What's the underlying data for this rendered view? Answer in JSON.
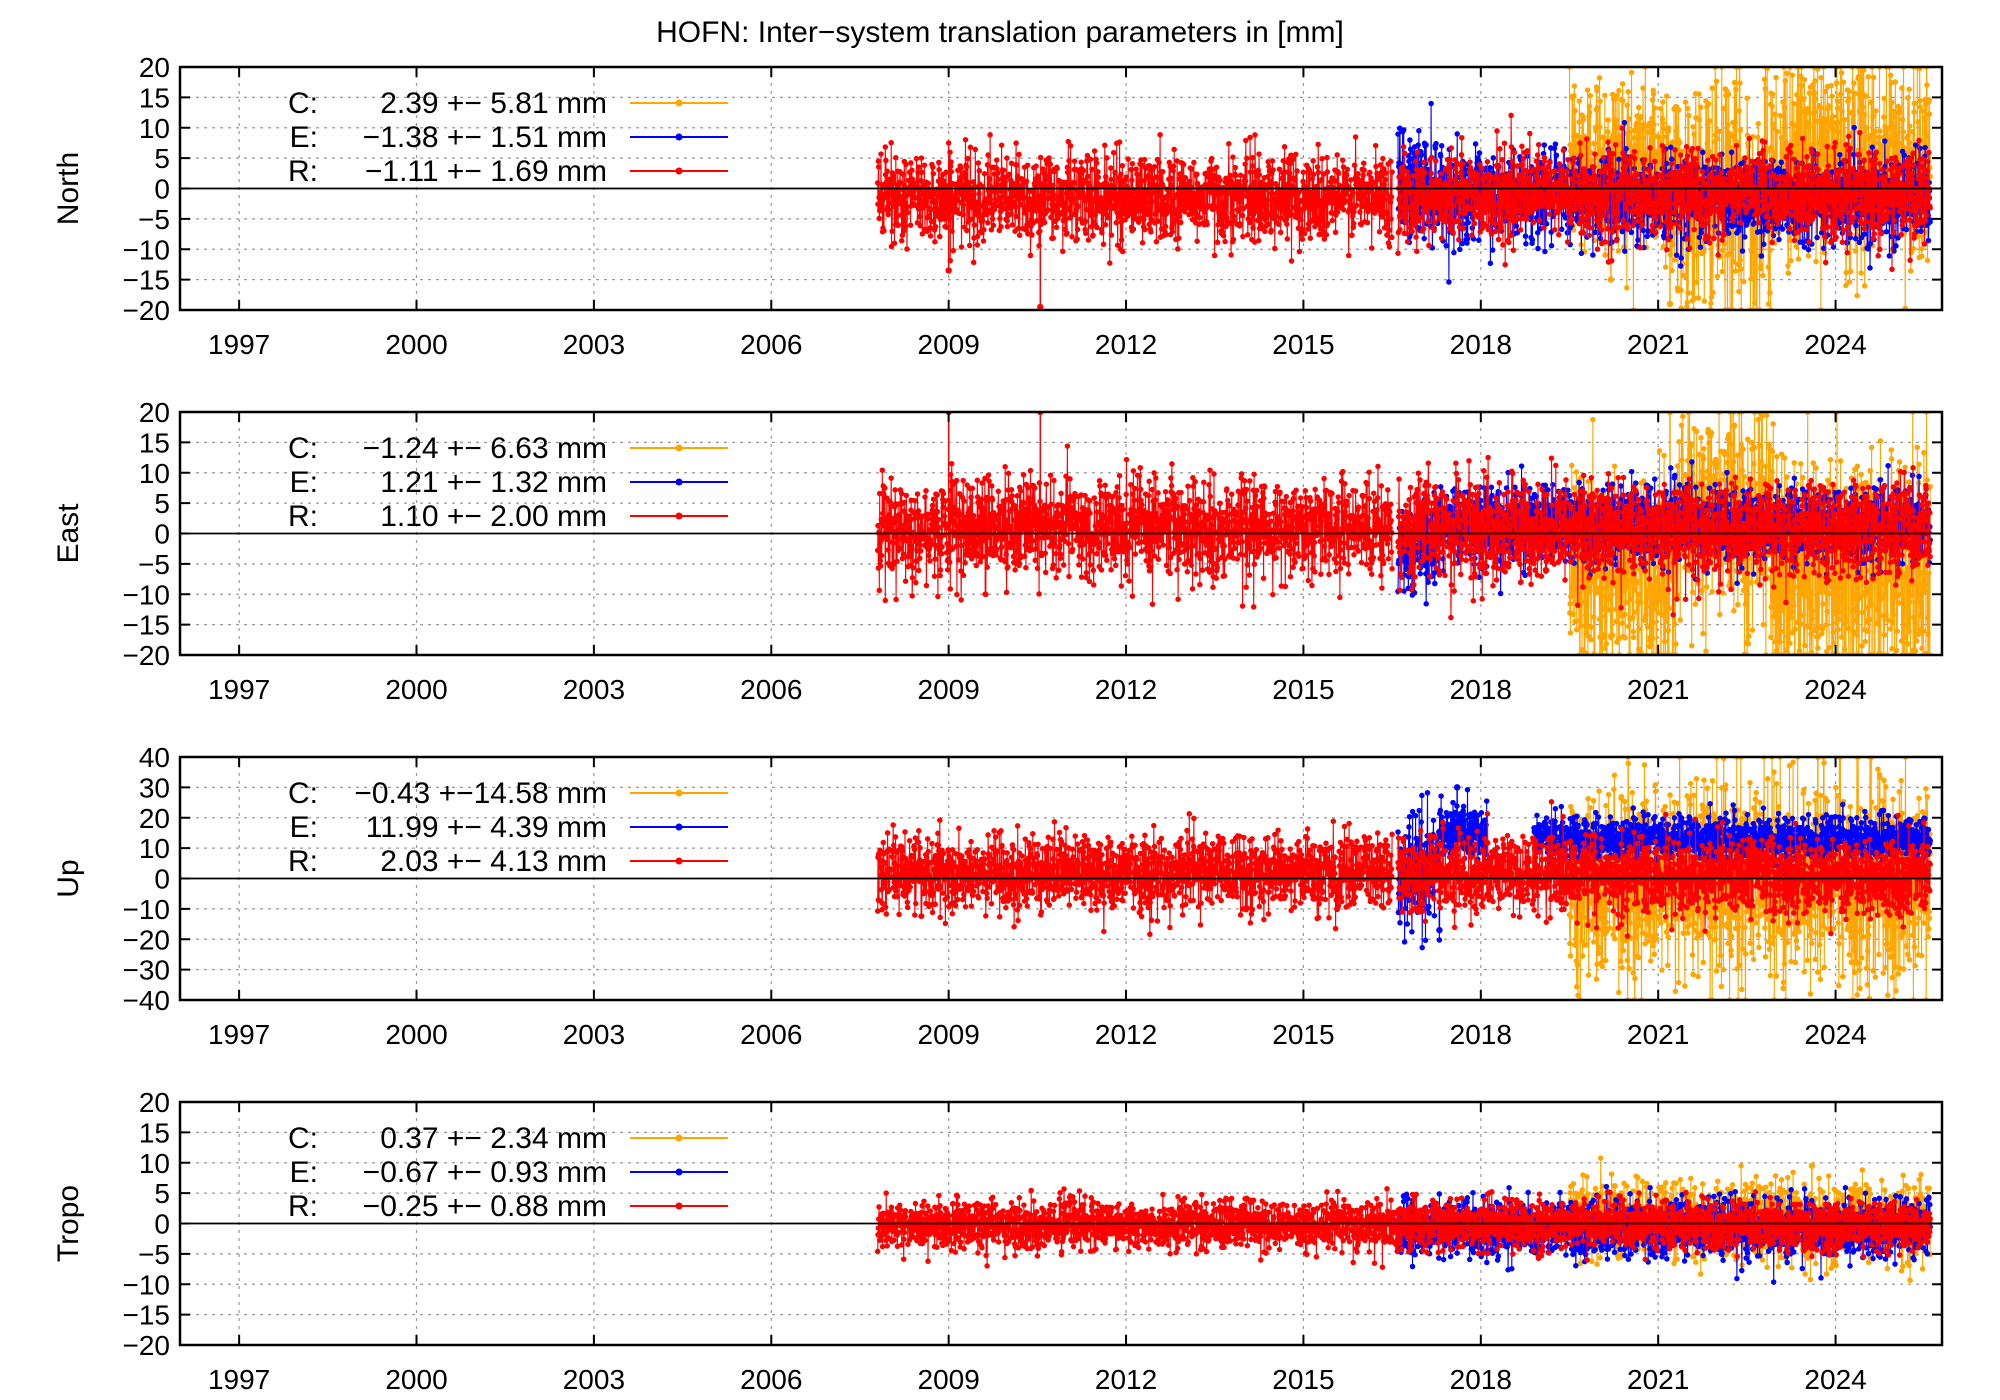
{
  "colors": {
    "C": "#ffa500",
    "E": "#0000ff",
    "R": "#ff0000"
  },
  "chart_data": {
    "type": "line",
    "title": "HOFN: Inter−system translation parameters in [mm]",
    "xlim": [
      1996.0,
      2025.8
    ],
    "xticks": [
      1997,
      2000,
      2003,
      2006,
      2009,
      2012,
      2015,
      2018,
      2021,
      2024
    ],
    "grid": true,
    "legend_position": "top-left",
    "marker": "dot-with-line",
    "panels": [
      {
        "ylabel": "North",
        "ylim": [
          -20,
          20
        ],
        "yticks": [
          20,
          15,
          10,
          5,
          0,
          -5,
          -10,
          -15,
          -20
        ],
        "series": [
          {
            "name": "C",
            "label": "C:",
            "value_text": "2.39 +− 5.81 mm",
            "mean": 2.39,
            "std": 5.81,
            "segments": [
              [
                2019.5,
                2021.2,
                4.5,
                9
              ],
              [
                2021.2,
                2022.9,
                -2,
                12
              ],
              [
                2022.9,
                2025.6,
                5,
                10
              ]
            ]
          },
          {
            "name": "E",
            "label": "E:",
            "value_text": "−1.38 +− 1.51 mm",
            "mean": -1.38,
            "std": 1.51,
            "segments": [
              [
                2016.6,
                2017.4,
                0.5,
                5
              ],
              [
                2017.4,
                2025.6,
                -1.5,
                4
              ]
            ]
          },
          {
            "name": "R",
            "label": "R:",
            "value_text": "−1.11 +− 1.69 mm",
            "mean": -1.11,
            "std": 1.69,
            "segments": [
              [
                2007.8,
                2016.5,
                -1.5,
                4
              ],
              [
                2016.6,
                2025.6,
                -1,
                4
              ]
            ]
          }
        ],
        "outliers": [
          {
            "series": "R",
            "x": 2009.0,
            "y": -13.5
          },
          {
            "series": "R",
            "x": 2010.55,
            "y": -19.5
          },
          {
            "series": "C",
            "x": 2021.2,
            "y": -19
          },
          {
            "series": "C",
            "x": 2020.2,
            "y": -15
          }
        ]
      },
      {
        "ylabel": "East",
        "ylim": [
          -20,
          20
        ],
        "yticks": [
          20,
          15,
          10,
          5,
          0,
          -5,
          -10,
          -15,
          -20
        ],
        "series": [
          {
            "name": "C",
            "label": "C:",
            "value_text": "−1.24 +− 6.63 mm",
            "mean": -1.24,
            "std": 6.63,
            "segments": [
              [
                2019.5,
                2021.3,
                -8,
                10
              ],
              [
                2021.3,
                2022.9,
                4,
                10
              ],
              [
                2022.9,
                2025.6,
                -7,
                12
              ]
            ]
          },
          {
            "name": "E",
            "label": "E:",
            "value_text": "1.21 +− 1.32 mm",
            "mean": 1.21,
            "std": 1.32,
            "segments": [
              [
                2016.6,
                2017.3,
                -2,
                4
              ],
              [
                2017.3,
                2025.6,
                1.5,
                3.5
              ]
            ]
          },
          {
            "name": "R",
            "label": "R:",
            "value_text": "1.10 +− 2.00 mm",
            "mean": 1.1,
            "std": 2.0,
            "segments": [
              [
                2007.8,
                2016.5,
                1,
                4.5
              ],
              [
                2016.6,
                2025.6,
                0.5,
                4.5
              ]
            ]
          }
        ],
        "outliers": [
          {
            "series": "R",
            "x": 2009.0,
            "y": 20
          },
          {
            "series": "R",
            "x": 2010.55,
            "y": 20
          },
          {
            "series": "C",
            "x": 2021.2,
            "y": 20
          },
          {
            "series": "C",
            "x": 2022.5,
            "y": -18
          }
        ]
      },
      {
        "ylabel": "Up",
        "ylim": [
          -40,
          40
        ],
        "yticks": [
          40,
          30,
          20,
          10,
          0,
          -10,
          -20,
          -30,
          -40
        ],
        "series": [
          {
            "name": "C",
            "label": "C:",
            "value_text": "−0.43 +−14.58 mm",
            "mean": -0.43,
            "std": 14.58,
            "segments": [
              [
                2019.5,
                2025.6,
                -0.43,
                20
              ]
            ]
          },
          {
            "name": "E",
            "label": "E:",
            "value_text": "11.99 +− 4.39 mm",
            "mean": 11.99,
            "std": 4.39,
            "segments": [
              [
                2016.6,
                2017.3,
                3,
                10
              ],
              [
                2017.3,
                2018.1,
                15,
                5
              ],
              [
                2018.9,
                2025.6,
                13,
                4
              ]
            ]
          },
          {
            "name": "R",
            "label": "R:",
            "value_text": "2.03 +− 4.13 mm",
            "mean": 2.03,
            "std": 4.13,
            "segments": [
              [
                2007.8,
                2016.5,
                2,
                7
              ],
              [
                2016.6,
                2025.6,
                1,
                7
              ]
            ]
          }
        ],
        "outliers": [
          {
            "series": "E",
            "x": 2017.3,
            "y": -17
          },
          {
            "series": "E",
            "x": 2017.6,
            "y": 30
          },
          {
            "series": "C",
            "x": 2023.7,
            "y": 40
          },
          {
            "series": "C",
            "x": 2024.6,
            "y": 40
          }
        ]
      },
      {
        "ylabel": "Tropo",
        "ylim": [
          -20,
          20
        ],
        "yticks": [
          20,
          15,
          10,
          5,
          0,
          -5,
          -10,
          -15,
          -20
        ],
        "series": [
          {
            "name": "C",
            "label": "C:",
            "value_text": "0.37 +− 2.34 mm",
            "mean": 0.37,
            "std": 2.34,
            "segments": [
              [
                2019.5,
                2025.6,
                0.5,
                3.5
              ]
            ]
          },
          {
            "name": "E",
            "label": "E:",
            "value_text": "−0.67 +− 0.93 mm",
            "mean": -0.67,
            "std": 0.93,
            "segments": [
              [
                2016.6,
                2025.6,
                -0.7,
                2.5
              ]
            ]
          },
          {
            "name": "R",
            "label": "R:",
            "value_text": "−0.25 +− 0.88 mm",
            "mean": -0.25,
            "std": 0.88,
            "segments": [
              [
                2007.8,
                2025.6,
                -0.25,
                2.2
              ]
            ]
          }
        ],
        "outliers": [
          {
            "series": "C",
            "x": 2023.6,
            "y": 9.5
          },
          {
            "series": "E",
            "x": 2016.7,
            "y": 4.5
          }
        ]
      }
    ]
  }
}
